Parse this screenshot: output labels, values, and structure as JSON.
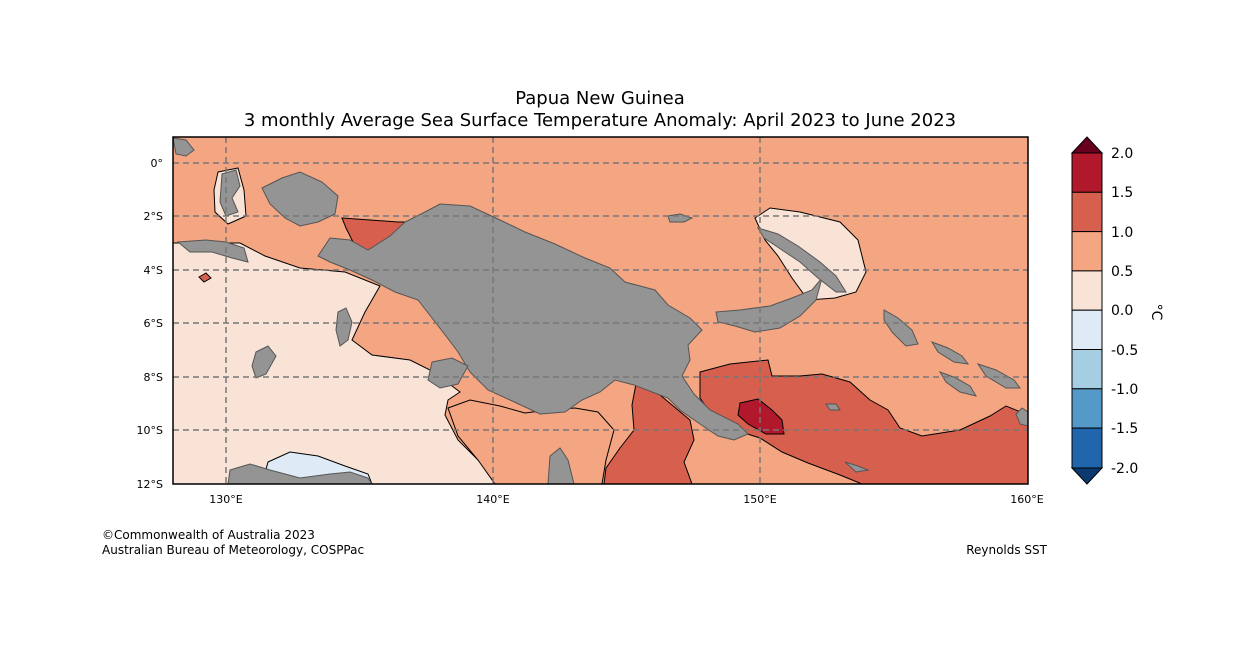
{
  "title": "Papua New Guinea",
  "subtitle": "3 monthly Average Sea Surface Temperature Anomaly: April 2023 to June 2023",
  "axes": {
    "lat_labels": [
      "0°",
      "2°S",
      "4°S",
      "6°S",
      "8°S",
      "10°S",
      "12°S"
    ],
    "lon_labels": [
      "130°E",
      "140°E",
      "150°E",
      "160°E"
    ]
  },
  "colorbar": {
    "unit": "°C",
    "ticks": [
      "2.0",
      "1.5",
      "1.0",
      "0.5",
      "0.0",
      "-0.5",
      "-1.0",
      "-1.5",
      "-2.0"
    ],
    "colors": {
      "over": "#67001f",
      "c15_20": "#b2182b",
      "c10_15": "#d6604d",
      "c05_10": "#f4a582",
      "c00_05": "#f9e3d6",
      "cm05_00": "#deebf7",
      "cm10_m05": "#a6cee3",
      "cm15_m10": "#5599c8",
      "cm20_m15": "#2166ac",
      "under": "#0d3a6e"
    }
  },
  "land_color": "#949494",
  "credits": {
    "line1": "©Commonwealth of Australia 2023",
    "line2": "Australian Bureau of Meteorology, COSPPac",
    "source": "Reynolds SST"
  }
}
